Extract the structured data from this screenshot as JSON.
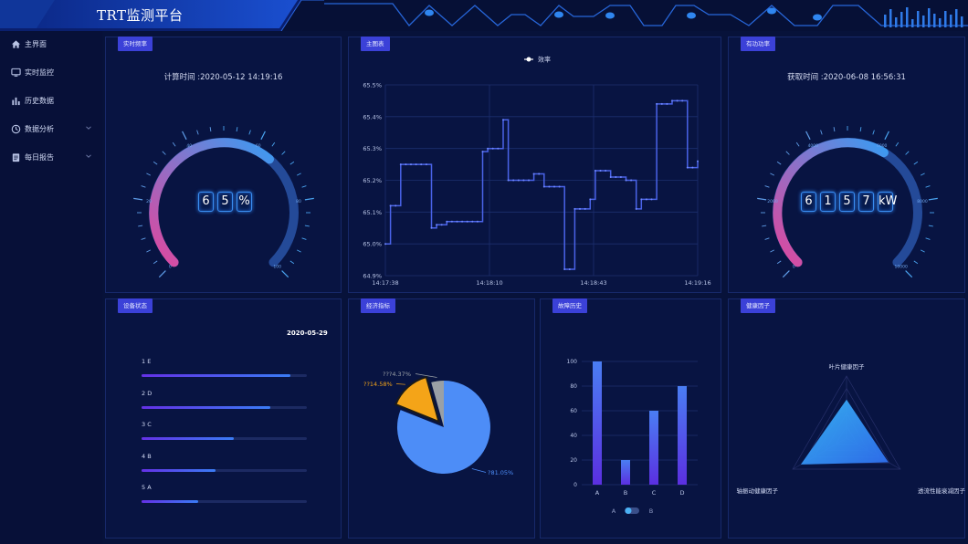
{
  "app": {
    "title": "TRT监测平台"
  },
  "sidebar": {
    "items": [
      {
        "label": "主界面",
        "icon": "home-icon",
        "expandable": false
      },
      {
        "label": "实时监控",
        "icon": "monitor-icon",
        "expandable": false
      },
      {
        "label": "历史数据",
        "icon": "bar-chart-icon",
        "expandable": false
      },
      {
        "label": "数据分析",
        "icon": "clock-icon",
        "expandable": true
      },
      {
        "label": "每日报告",
        "icon": "document-icon",
        "expandable": true
      }
    ]
  },
  "panels": {
    "realtime_efficiency": {
      "tag": "实时频率",
      "time_text": "计算时间 :2020-05-12 14:19:16",
      "digits": [
        "6",
        "5",
        "%"
      ],
      "gauge": {
        "value": 65,
        "min": 0,
        "max": 100,
        "tick_labels": [
          "0",
          "20",
          "40",
          "60",
          "80",
          "100"
        ]
      }
    },
    "main_table": {
      "tag": "主图表",
      "legend": "效率"
    },
    "active_power": {
      "tag": "有功功率",
      "time_text": "获取时间 :2020-06-08 16:56:31",
      "digits": [
        "6",
        "1",
        "5",
        "7",
        "kW"
      ],
      "gauge": {
        "value": 6157,
        "min": 0,
        "max": 10000,
        "tick_labels": [
          "0",
          "2000",
          "4000",
          "6000",
          "8000",
          "10000"
        ]
      }
    },
    "device_status": {
      "tag": "设备状态",
      "date": "2020-05-29",
      "items": [
        {
          "label": "1  E",
          "value": 0.9
        },
        {
          "label": "2  D",
          "value": 0.78
        },
        {
          "label": "3  C",
          "value": 0.56
        },
        {
          "label": "4  B",
          "value": 0.45
        },
        {
          "label": "5  A",
          "value": 0.34
        }
      ]
    },
    "economic": {
      "tag": "经济指标"
    },
    "fault_history": {
      "tag": "故障历史"
    },
    "health_factor": {
      "tag": "健康因子"
    }
  },
  "chart_data": [
    {
      "type": "line",
      "series": [
        {
          "name": "效率",
          "values": [
            65.0,
            65.12,
            65.12,
            65.25,
            65.25,
            65.25,
            65.25,
            65.25,
            65.25,
            65.05,
            65.06,
            65.06,
            65.07,
            65.07,
            65.07,
            65.07,
            65.07,
            65.07,
            65.07,
            65.29,
            65.3,
            65.3,
            65.3,
            65.39,
            65.2,
            65.2,
            65.2,
            65.2,
            65.2,
            65.22,
            65.22,
            65.18,
            65.18,
            65.18,
            65.18,
            64.92,
            64.92,
            65.11,
            65.11,
            65.11,
            65.14,
            65.23,
            65.23,
            65.23,
            65.21,
            65.21,
            65.21,
            65.2,
            65.2,
            65.11,
            65.14,
            65.14,
            65.14,
            65.44,
            65.44,
            65.44,
            65.45,
            65.45,
            65.45,
            65.24,
            65.24,
            65.26
          ]
        }
      ],
      "x_tick_labels": [
        "14:17:38",
        "14:18:10",
        "14:18:43",
        "14:19:16"
      ],
      "y_tick_labels": [
        "64.9%",
        "65.0%",
        "65.1%",
        "65.2%",
        "65.3%",
        "65.4%",
        "65.5%"
      ],
      "ylim": [
        64.9,
        65.5
      ],
      "grid": true,
      "legend": "top-center"
    },
    {
      "type": "pie",
      "slices": [
        {
          "name": "?81.05%",
          "value": 81.05,
          "color": "#4d8df7"
        },
        {
          "name": "??14.58%",
          "value": 14.58,
          "color": "#f4a418"
        },
        {
          "name": "???4.37%",
          "value": 4.37,
          "color": "#9aa0a6"
        }
      ]
    },
    {
      "type": "bar",
      "categories": [
        "A",
        "B",
        "C",
        "D"
      ],
      "values": [
        100,
        20,
        60,
        80
      ],
      "ylim": [
        0,
        100
      ],
      "y_tick_labels": [
        "0",
        "20",
        "40",
        "60",
        "80",
        "100"
      ],
      "legend": [
        "A",
        "B"
      ]
    },
    {
      "type": "radar",
      "indicators": [
        "叶片健康因子",
        "透流性能衰减因子",
        "轴振动健康因子"
      ],
      "values": [
        0.62,
        0.78,
        0.85
      ]
    }
  ],
  "colors": {
    "accent": "#3b41d8",
    "background": "#07123a",
    "panel": "#081442",
    "gauge_start": "#e0479e",
    "gauge_end": "#3a9bf2"
  }
}
